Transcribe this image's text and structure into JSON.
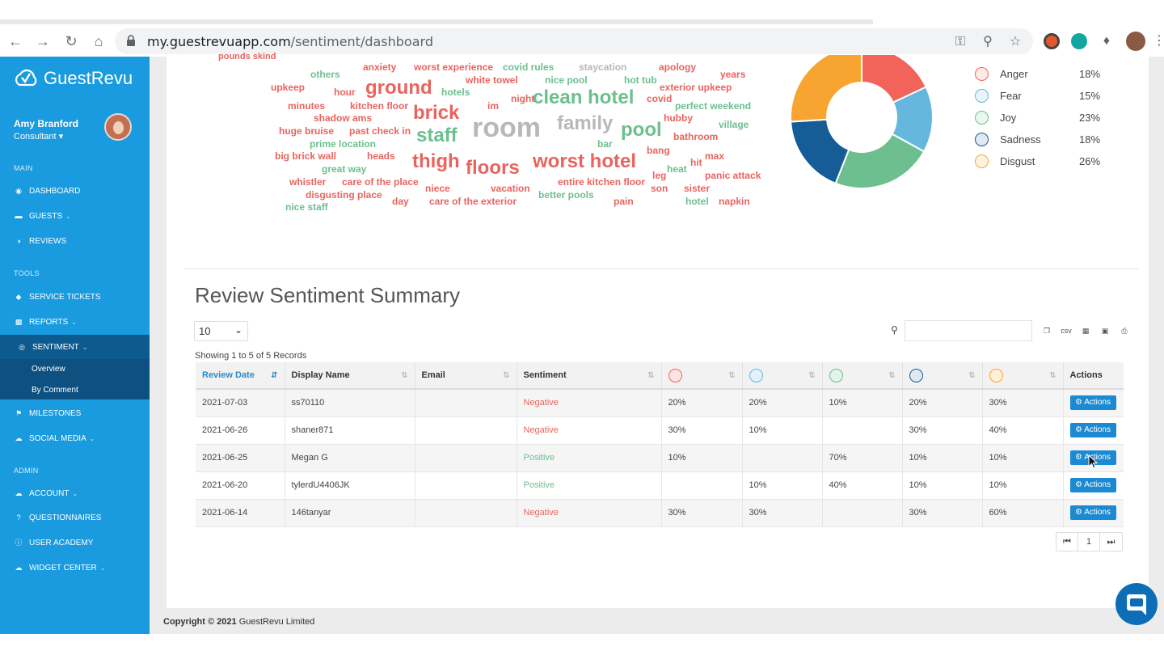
{
  "browser": {
    "url_domain": "my.guestrevuapp.com",
    "url_path": "/sentiment/dashboard",
    "nav_icons": [
      "back-arrow-icon",
      "forward-arrow-icon",
      "reload-icon",
      "home-icon"
    ],
    "omnibox_icons": [
      "lock-icon",
      "key-icon",
      "zoom-icon",
      "star-icon"
    ]
  },
  "sidebar": {
    "brand": "GuestRevu",
    "user_name": "Amy Branford",
    "user_role": "Consultant ▾",
    "sections": {
      "main": "MAIN",
      "tools": "TOOLS",
      "admin": "ADMIN"
    },
    "items": {
      "dashboard": "DASHBOARD",
      "guests": "GUESTS",
      "reviews": "REVIEWS",
      "service_tickets": "SERVICE TICKETS",
      "reports": "REPORTS",
      "sentiment": "SENTIMENT",
      "overview": "Overview",
      "by_comment": "By Comment",
      "milestones": "MILESTONES",
      "social_media": "SOCIAL MEDIA",
      "account": "ACCOUNT",
      "questionnaires": "QUESTIONNAIRES",
      "user_academy": "USER ACADEMY",
      "widget_center": "WIDGET CENTER"
    },
    "colors": {
      "bg": "#1a9be0",
      "active": "#0d5a8f"
    }
  },
  "wordcloud": {
    "words": [
      {
        "text": "pounds skind",
        "cls": "neg"
      },
      {
        "text": "anxiety",
        "cls": "neg"
      },
      {
        "text": "worst experience",
        "cls": "neg"
      },
      {
        "text": "covid rules",
        "cls": "pos"
      },
      {
        "text": "staycation",
        "cls": "neu"
      },
      {
        "text": "apology",
        "cls": "neg"
      },
      {
        "text": "others",
        "cls": "pos"
      },
      {
        "text": "years",
        "cls": "neg"
      },
      {
        "text": "white towel",
        "cls": "neg"
      },
      {
        "text": "nice pool",
        "cls": "pos"
      },
      {
        "text": "hot tub",
        "cls": "pos"
      },
      {
        "text": "upkeep",
        "cls": "neg"
      },
      {
        "text": "hour",
        "cls": "neg"
      },
      {
        "text": "ground",
        "cls": "neg"
      },
      {
        "text": "hotels",
        "cls": "pos"
      },
      {
        "text": "clean hotel",
        "cls": "pos"
      },
      {
        "text": "exterior upkeep",
        "cls": "neg"
      },
      {
        "text": "night",
        "cls": "neg"
      },
      {
        "text": "covid",
        "cls": "neg"
      },
      {
        "text": "minutes",
        "cls": "neg"
      },
      {
        "text": "kitchen floor",
        "cls": "neg"
      },
      {
        "text": "brick",
        "cls": "neg"
      },
      {
        "text": "im",
        "cls": "neg"
      },
      {
        "text": "perfect weekend",
        "cls": "pos"
      },
      {
        "text": "shadow ams",
        "cls": "neg"
      },
      {
        "text": "room",
        "cls": "neu"
      },
      {
        "text": "family",
        "cls": "neu"
      },
      {
        "text": "hubby",
        "cls": "neg"
      },
      {
        "text": "huge bruise",
        "cls": "neg"
      },
      {
        "text": "past check in",
        "cls": "neg"
      },
      {
        "text": "staff",
        "cls": "pos"
      },
      {
        "text": "pool",
        "cls": "pos"
      },
      {
        "text": "village",
        "cls": "pos"
      },
      {
        "text": "prime location",
        "cls": "pos"
      },
      {
        "text": "bathroom",
        "cls": "neg"
      },
      {
        "text": "bar",
        "cls": "pos"
      },
      {
        "text": "big brick wall",
        "cls": "neg"
      },
      {
        "text": "heads",
        "cls": "neg"
      },
      {
        "text": "thigh",
        "cls": "neg"
      },
      {
        "text": "worst hotel",
        "cls": "neg"
      },
      {
        "text": "bang",
        "cls": "neg"
      },
      {
        "text": "max",
        "cls": "neg"
      },
      {
        "text": "great way",
        "cls": "pos"
      },
      {
        "text": "floors",
        "cls": "neg"
      },
      {
        "text": "hit",
        "cls": "neg"
      },
      {
        "text": "heat",
        "cls": "pos"
      },
      {
        "text": "leg",
        "cls": "neg"
      },
      {
        "text": "whistler",
        "cls": "neg"
      },
      {
        "text": "care of the place",
        "cls": "neg"
      },
      {
        "text": "entire kitchen floor",
        "cls": "neg"
      },
      {
        "text": "panic attack",
        "cls": "neg"
      },
      {
        "text": "niece",
        "cls": "neg"
      },
      {
        "text": "vacation",
        "cls": "neg"
      },
      {
        "text": "son",
        "cls": "neg"
      },
      {
        "text": "sister",
        "cls": "neg"
      },
      {
        "text": "disgusting place",
        "cls": "neg"
      },
      {
        "text": "better pools",
        "cls": "pos"
      },
      {
        "text": "day",
        "cls": "neg"
      },
      {
        "text": "care of the exterior",
        "cls": "neg"
      },
      {
        "text": "pain",
        "cls": "neg"
      },
      {
        "text": "hotel",
        "cls": "pos"
      },
      {
        "text": "napkin",
        "cls": "neg"
      },
      {
        "text": "nice staff",
        "cls": "pos"
      }
    ]
  },
  "emotions": {
    "items": [
      {
        "label": "Anger",
        "value": "18%",
        "pct": 18,
        "color": "#f2635a",
        "icon": "angry-face-icon"
      },
      {
        "label": "Fear",
        "value": "15%",
        "pct": 15,
        "color": "#65b7de",
        "icon": "fearful-face-icon"
      },
      {
        "label": "Joy",
        "value": "23%",
        "pct": 23,
        "color": "#6dbf8f",
        "icon": "happy-face-icon"
      },
      {
        "label": "Sadness",
        "value": "18%",
        "pct": 18,
        "color": "#165d97",
        "icon": "sad-face-icon"
      },
      {
        "label": "Disgust",
        "value": "26%",
        "pct": 26,
        "color": "#f7a530",
        "icon": "disgusted-face-icon"
      }
    ]
  },
  "summary": {
    "title": "Review Sentiment Summary",
    "page_length": "10",
    "showing": "Showing 1 to 5 of 5 Records",
    "export_labels": {
      "copy": "copy-icon",
      "csv": "csv",
      "excel": "excel-icon",
      "pdf": "pdf-icon",
      "print": "print-icon"
    },
    "columns": {
      "review_date": "Review Date",
      "display_name": "Display Name",
      "email": "Email",
      "sentiment": "Sentiment",
      "actions": "Actions"
    },
    "action_label": "Actions",
    "rows": [
      {
        "date": "2021-07-03",
        "name": "ss70110",
        "email": "",
        "sentiment": "Negative",
        "anger": "20%",
        "fear": "20%",
        "joy": "10%",
        "sadness": "20%",
        "disgust": "30%"
      },
      {
        "date": "2021-06-26",
        "name": "shaner871",
        "email": "",
        "sentiment": "Negative",
        "anger": "30%",
        "fear": "10%",
        "joy": "",
        "sadness": "30%",
        "disgust": "40%"
      },
      {
        "date": "2021-06-25",
        "name": "Megan G",
        "email": "",
        "sentiment": "Positive",
        "anger": "10%",
        "fear": "",
        "joy": "70%",
        "sadness": "10%",
        "disgust": "10%"
      },
      {
        "date": "2021-06-20",
        "name": "tylerdU4406JK",
        "email": "",
        "sentiment": "Positive",
        "anger": "",
        "fear": "10%",
        "joy": "40%",
        "sadness": "10%",
        "disgust": "10%"
      },
      {
        "date": "2021-06-14",
        "name": "146tanyar",
        "email": "",
        "sentiment": "Negative",
        "anger": "30%",
        "fear": "30%",
        "joy": "",
        "sadness": "30%",
        "disgust": "60%"
      }
    ],
    "pager": {
      "prev": "◀◀",
      "page": "1",
      "next": "▶▶"
    }
  },
  "footer": {
    "copyright_bold": "Copyright © 2021",
    "company": " GuestRevu Limited"
  }
}
